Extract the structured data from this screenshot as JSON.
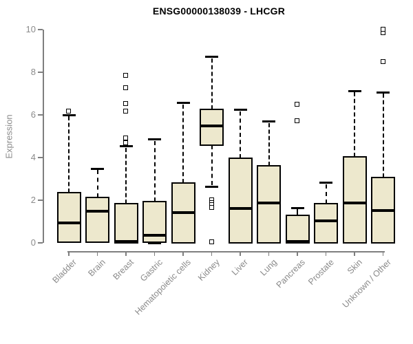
{
  "title": "ENSG00000138039 - LHCGR",
  "chart_data": {
    "type": "boxplot",
    "title": "ENSG00000138039 - LHCGR",
    "xlabel": "",
    "ylabel": "Expression",
    "ylim": [
      0,
      10
    ],
    "yticks": [
      0,
      2,
      4,
      6,
      8,
      10
    ],
    "grid": false,
    "legend": "none",
    "box_fill_color": "#ede8cd",
    "box_border_color": "#000000",
    "median_color": "#000000",
    "axis_color": "#7e7e7e",
    "axis_text_color": "#8a8a8a",
    "categories": [
      "Bladder",
      "Brain",
      "Breast",
      "Gastric",
      "Hematopoietic cells",
      "Kidney",
      "Liver",
      "Lung",
      "Pancreas",
      "Prostate",
      "Skin",
      "Unknown / Other"
    ],
    "series": [
      {
        "category": "Bladder",
        "whisker_low": 0,
        "q1": 0.02,
        "median": 0.93,
        "q3": 2.35,
        "whisker_high": 6.0,
        "outliers": [
          6.15
        ]
      },
      {
        "category": "Brain",
        "whisker_low": 0,
        "q1": 0.02,
        "median": 1.48,
        "q3": 2.14,
        "whisker_high": 3.47,
        "outliers": []
      },
      {
        "category": "Breast",
        "whisker_low": 0,
        "q1": 0.0,
        "median": 0.06,
        "q3": 1.84,
        "whisker_high": 4.52,
        "outliers": [
          4.68,
          4.91,
          6.16,
          6.53,
          7.26,
          7.85
        ]
      },
      {
        "category": "Gastric",
        "whisker_low": 0,
        "q1": 0.04,
        "median": 0.36,
        "q3": 1.92,
        "whisker_high": 4.85,
        "outliers": []
      },
      {
        "category": "Hematopoietic cells",
        "whisker_low": 0,
        "q1": 0.0,
        "median": 1.41,
        "q3": 2.82,
        "whisker_high": 6.56,
        "outliers": []
      },
      {
        "category": "Kidney",
        "whisker_low": 2.64,
        "q1": 4.59,
        "median": 5.5,
        "q3": 6.26,
        "whisker_high": 8.71,
        "outliers": [
          1.99,
          1.88,
          1.79,
          1.63,
          0.02
        ]
      },
      {
        "category": "Liver",
        "whisker_low": 0,
        "q1": 0.0,
        "median": 1.61,
        "q3": 3.98,
        "whisker_high": 6.23,
        "outliers": []
      },
      {
        "category": "Lung",
        "whisker_low": 0,
        "q1": 0.0,
        "median": 1.86,
        "q3": 3.61,
        "whisker_high": 5.69,
        "outliers": []
      },
      {
        "category": "Pancreas",
        "whisker_low": 0,
        "q1": 0.0,
        "median": 0.06,
        "q3": 1.29,
        "whisker_high": 1.63,
        "outliers": [
          5.72,
          6.47
        ]
      },
      {
        "category": "Prostate",
        "whisker_low": 0,
        "q1": 0.0,
        "median": 1.03,
        "q3": 1.83,
        "whisker_high": 2.81,
        "outliers": []
      },
      {
        "category": "Skin",
        "whisker_low": 0,
        "q1": 0.0,
        "median": 1.88,
        "q3": 4.03,
        "whisker_high": 7.12,
        "outliers": []
      },
      {
        "category": "Unknown / Other",
        "whisker_low": 0,
        "q1": 0.0,
        "median": 1.52,
        "q3": 3.07,
        "whisker_high": 7.05,
        "outliers": [
          8.47,
          9.85,
          10.0
        ]
      }
    ]
  }
}
